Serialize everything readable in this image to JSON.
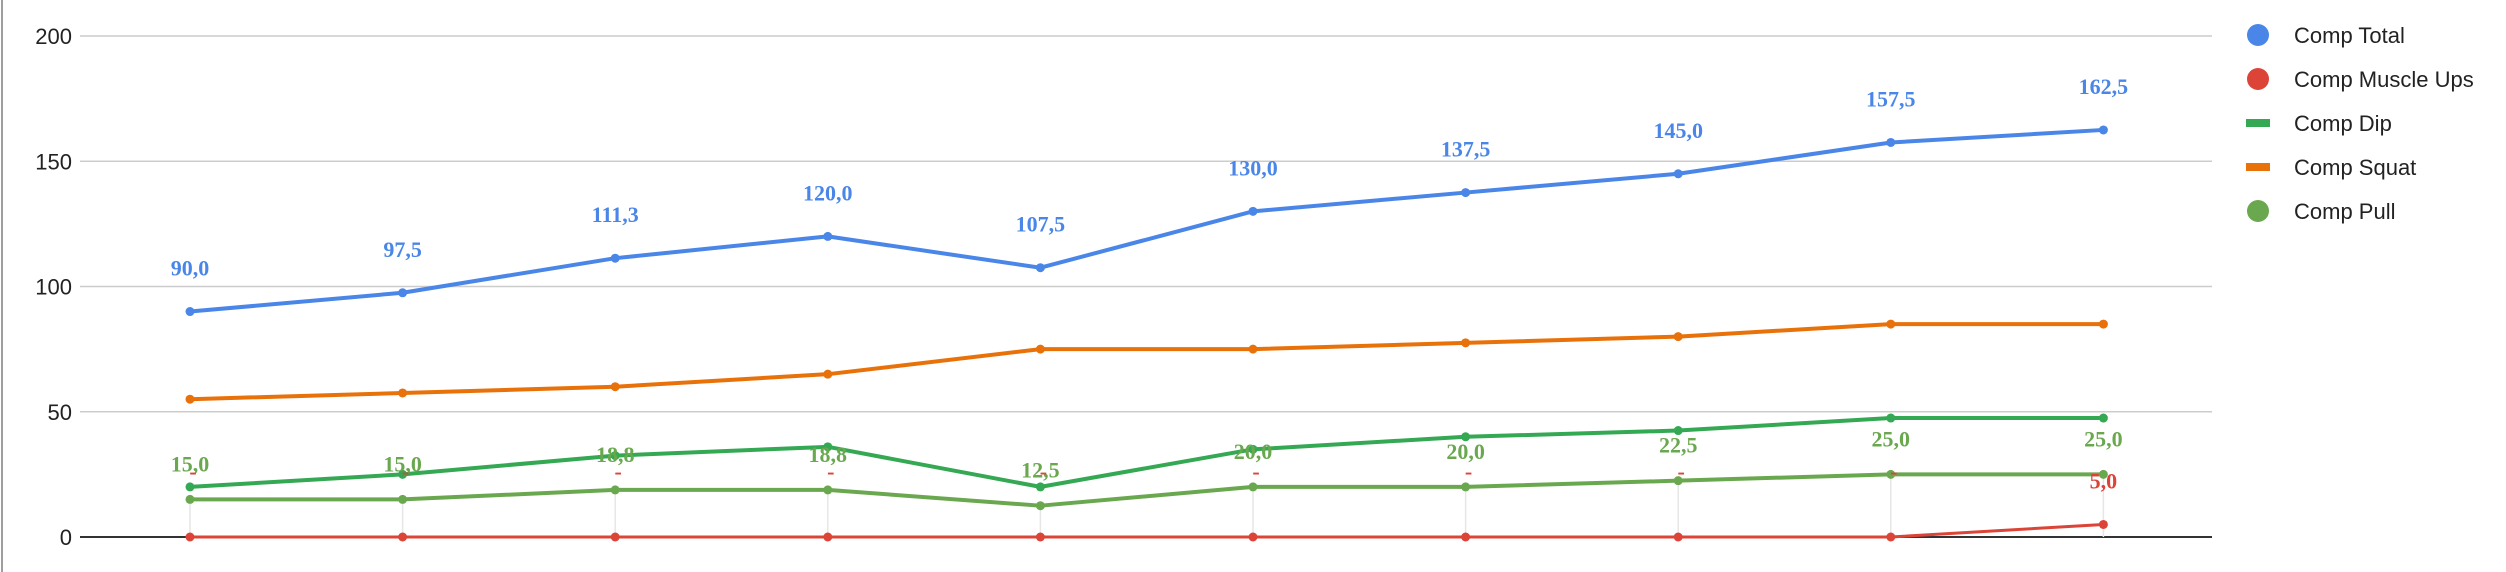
{
  "chart_data": {
    "type": "line",
    "title": "",
    "xlabel": "",
    "ylabel": "",
    "ylim": [
      0,
      200
    ],
    "y_ticks": [
      "0",
      "50",
      "100",
      "150",
      "200"
    ],
    "grid": true,
    "legend_position": "right",
    "x": [
      1,
      2,
      3,
      4,
      5,
      6,
      7,
      8,
      9,
      10
    ],
    "series": [
      {
        "name": "Comp Total",
        "color": "#4a86e8",
        "marker": "circle",
        "values": [
          90.0,
          97.5,
          111.3,
          120.0,
          107.5,
          130.0,
          137.5,
          145.0,
          157.5,
          162.5
        ],
        "labels": [
          "90,0",
          "97,5",
          "111,3",
          "120,0",
          "107,5",
          "130,0",
          "137,5",
          "145,0",
          "157,5",
          "162,5"
        ]
      },
      {
        "name": "Comp Muscle Ups",
        "color": "#db4437",
        "marker": "circle",
        "values": [
          0,
          0,
          0,
          0,
          0,
          0,
          0,
          0,
          0,
          5.0
        ],
        "labels": [
          "-",
          "-",
          "-",
          "-",
          "-",
          "-",
          "-",
          "-",
          "-",
          "5,0"
        ]
      },
      {
        "name": "Comp Dip",
        "color": "#34a853",
        "marker": "line",
        "values": [
          20,
          25,
          32.5,
          36,
          20,
          35,
          40,
          42.5,
          47.5,
          47.5
        ],
        "labels": []
      },
      {
        "name": "Comp Squat",
        "color": "#e8710a",
        "marker": "line",
        "values": [
          55,
          57.5,
          60,
          65,
          75,
          75,
          77.5,
          80,
          85,
          85
        ],
        "labels": []
      },
      {
        "name": "Comp Pull",
        "color": "#6aa84f",
        "marker": "circle",
        "values": [
          15.0,
          15.0,
          18.8,
          18.8,
          12.5,
          20.0,
          20.0,
          22.5,
          25.0,
          25.0
        ],
        "labels": [
          "15,0",
          "15,0",
          "18,8",
          "18,8",
          "12,5",
          "20,0",
          "20,0",
          "22,5",
          "25,0",
          "25,0"
        ]
      }
    ]
  }
}
